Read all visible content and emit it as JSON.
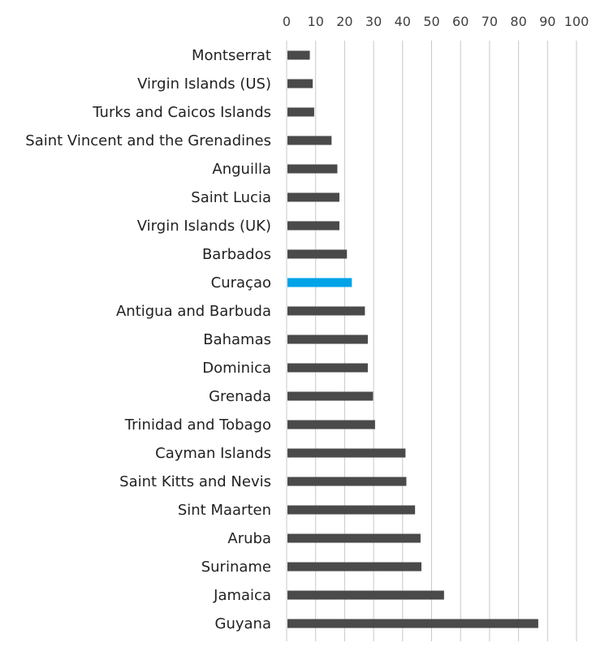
{
  "chart_data": {
    "type": "bar",
    "orientation": "horizontal",
    "title": "",
    "xlabel": "",
    "ylabel": "",
    "xlim": [
      0,
      100
    ],
    "x_ticks": [
      "0",
      "10",
      "20",
      "30",
      "40",
      "50",
      "60",
      "70",
      "80",
      "90",
      "100"
    ],
    "x_axis_position": "top",
    "grid": "vertical",
    "bar_color": "#4a4a4a",
    "highlight_color": "#00a3e8",
    "highlight_category": "Curaçao",
    "categories": [
      "Montserrat",
      "Virgin Islands (US)",
      "Turks and Caicos Islands",
      "Saint Vincent and the Grenadines",
      "Anguilla",
      "Saint Lucia",
      "Virgin Islands (UK)",
      "Barbados",
      "Curaçao",
      "Antigua and Barbuda",
      "Bahamas",
      "Dominica",
      "Grenada",
      "Trinidad and Tobago",
      "Cayman Islands",
      "Saint Kitts and Nevis",
      "Sint Maarten",
      "Aruba",
      "Suriname",
      "Jamaica",
      "Guyana"
    ],
    "values": [
      8,
      9,
      9.5,
      15.5,
      17.5,
      18.2,
      18.2,
      20.8,
      22.5,
      27,
      28,
      28,
      29.8,
      30.5,
      41,
      41.3,
      44.3,
      46.2,
      46.5,
      54.3,
      86.8
    ]
  }
}
